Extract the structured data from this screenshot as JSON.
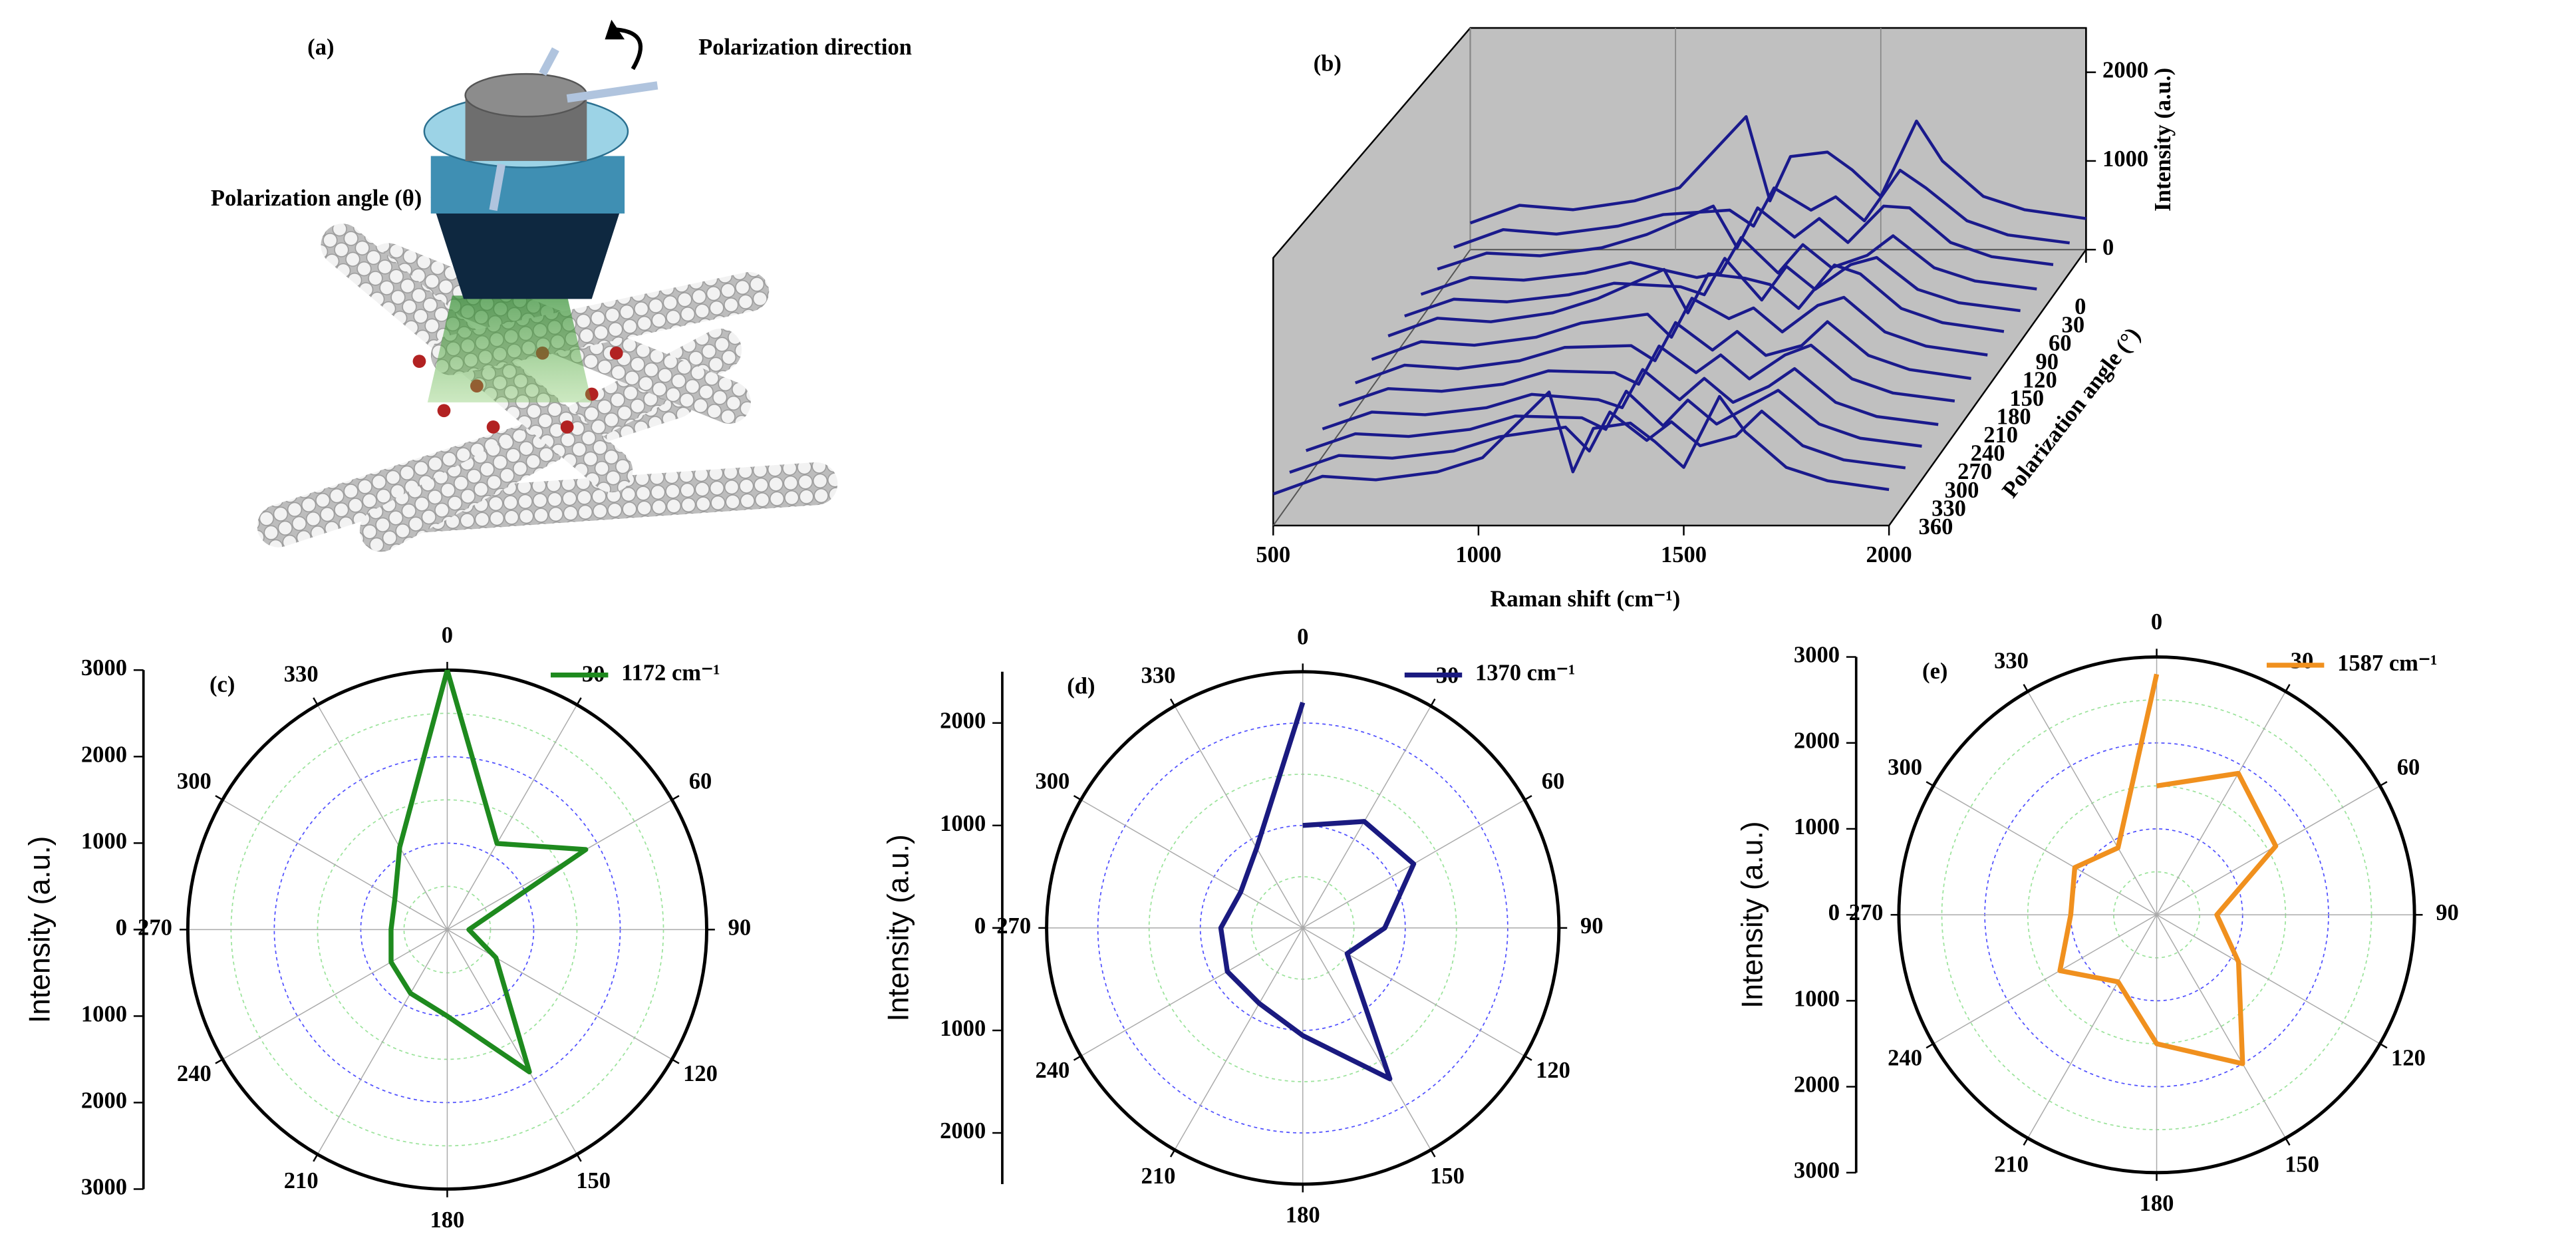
{
  "illustration": {
    "label": "(a)",
    "direction_label": "Polarization direction",
    "angle_label": "Polarization angle (θ)"
  },
  "chart_data": [
    {
      "type": "waterfall",
      "panel": "(b)",
      "x_label": "Raman shift (cm⁻¹)",
      "y_label": "Intensity (a.u.)",
      "z_label": "Polarization angle (°)",
      "x": [
        500,
        620,
        750,
        900,
        1010,
        1172,
        1230,
        1280,
        1370,
        1430,
        1500,
        1587,
        1650,
        1750,
        1850,
        2000
      ],
      "xlim": [
        500,
        2000
      ],
      "xticks": [
        500,
        1000,
        1500,
        2000
      ],
      "ylim": [
        0,
        2500
      ],
      "yticks": [
        0,
        1000,
        2000
      ],
      "zticks": [
        0,
        30,
        60,
        90,
        120,
        150,
        180,
        210,
        240,
        270,
        300,
        330,
        360
      ],
      "color": "#1a1a8c",
      "series": [
        {
          "values": [
            300,
            500,
            450,
            550,
            700,
            1500,
            550,
            1050,
            1100,
            900,
            600,
            1450,
            1000,
            600,
            450,
            350
          ]
        },
        {
          "values": [
            280,
            480,
            430,
            520,
            650,
            700,
            520,
            950,
            700,
            850,
            580,
            1150,
            950,
            580,
            420,
            330
          ]
        },
        {
          "values": [
            290,
            470,
            440,
            530,
            680,
            1000,
            530,
            980,
            650,
            860,
            590,
            1000,
            980,
            590,
            430,
            340
          ]
        },
        {
          "values": [
            260,
            450,
            420,
            500,
            620,
            450,
            500,
            900,
            500,
            820,
            560,
            700,
            920,
            560,
            410,
            320
          ]
        },
        {
          "values": [
            270,
            460,
            430,
            510,
            640,
            600,
            510,
            920,
            450,
            830,
            570,
            850,
            930,
            570,
            420,
            330
          ]
        },
        {
          "values": [
            300,
            500,
            460,
            560,
            720,
            1050,
            560,
            1000,
            950,
            880,
            610,
            1100,
            1000,
            610,
            450,
            350
          ]
        },
        {
          "values": [
            290,
            490,
            450,
            540,
            700,
            800,
            540,
            980,
            750,
            870,
            600,
            900,
            990,
            600,
            440,
            340
          ]
        },
        {
          "values": [
            280,
            480,
            440,
            530,
            680,
            700,
            530,
            960,
            650,
            860,
            590,
            700,
            970,
            590,
            430,
            330
          ]
        },
        {
          "values": [
            280,
            470,
            440,
            520,
            670,
            650,
            520,
            950,
            650,
            850,
            580,
            850,
            960,
            580,
            420,
            330
          ]
        },
        {
          "values": [
            270,
            460,
            430,
            510,
            660,
            600,
            510,
            940,
            600,
            840,
            570,
            750,
            950,
            570,
            410,
            320
          ]
        },
        {
          "values": [
            280,
            470,
            440,
            520,
            670,
            650,
            520,
            950,
            560,
            850,
            580,
            800,
            960,
            580,
            420,
            330
          ]
        },
        {
          "values": [
            290,
            480,
            450,
            530,
            690,
            800,
            530,
            970,
            650,
            860,
            590,
            700,
            980,
            590,
            430,
            340
          ]
        },
        {
          "values": [
            300,
            500,
            460,
            550,
            710,
            1450,
            550,
            1040,
            1100,
            890,
            600,
            1400,
            1000,
            600,
            450,
            350
          ]
        }
      ]
    },
    {
      "type": "polar",
      "panel": "(c)",
      "r_label": "Intensity (a.u.)",
      "theta": [
        0,
        30,
        60,
        90,
        120,
        150,
        180,
        210,
        240,
        270,
        300,
        330,
        360
      ],
      "thetaticks": [
        0,
        30,
        60,
        90,
        120,
        150,
        180,
        210,
        240,
        270,
        300,
        330
      ],
      "rlim": [
        0,
        3000
      ],
      "rticks": [
        0,
        1000,
        2000,
        3000
      ],
      "series": [
        {
          "name": "1172 cm⁻¹",
          "color": "#1e8a1e",
          "values": [
            3000,
            1150,
            1850,
            250,
            650,
            1900,
            1000,
            850,
            750,
            650,
            700,
            1100,
            3000
          ]
        }
      ]
    },
    {
      "type": "polar",
      "panel": "(d)",
      "r_label": "Intensity (a.u.)",
      "theta": [
        0,
        30,
        60,
        90,
        120,
        150,
        180,
        210,
        240,
        270,
        300,
        330,
        360
      ],
      "thetaticks": [
        0,
        30,
        60,
        90,
        120,
        150,
        180,
        210,
        240,
        270,
        300,
        330
      ],
      "rlim": [
        0,
        2500
      ],
      "rticks": [
        0,
        1000,
        2000
      ],
      "series": [
        {
          "name": "1370 cm⁻¹",
          "color": "#1a1a80",
          "values": [
            1000,
            1200,
            1250,
            800,
            500,
            1700,
            1050,
            850,
            850,
            800,
            700,
            900,
            2200
          ]
        }
      ]
    },
    {
      "type": "polar",
      "panel": "(e)",
      "r_label": "Intensity (a.u.)",
      "theta": [
        0,
        30,
        60,
        90,
        120,
        150,
        180,
        210,
        240,
        270,
        300,
        330,
        360
      ],
      "thetaticks": [
        0,
        30,
        60,
        90,
        120,
        150,
        180,
        210,
        240,
        270,
        300,
        330
      ],
      "rlim": [
        0,
        3000
      ],
      "rticks": [
        0,
        1000,
        2000,
        3000
      ],
      "series": [
        {
          "name": "1587 cm⁻¹",
          "color": "#f0901e",
          "values": [
            1500,
            1900,
            1600,
            700,
            1100,
            2000,
            1500,
            900,
            1300,
            1000,
            1100,
            900,
            2800
          ]
        }
      ]
    }
  ]
}
